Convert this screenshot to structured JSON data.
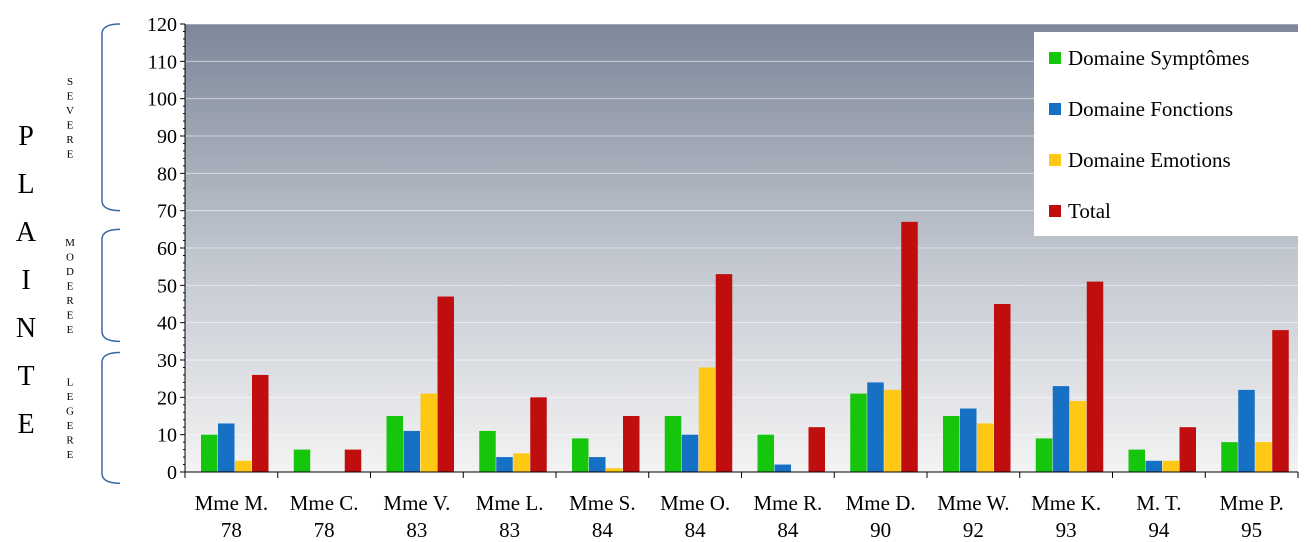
{
  "side_label": "PLAINTE",
  "severity_bands": [
    {
      "label": "SEVERE",
      "range": [
        70,
        120
      ]
    },
    {
      "label": "MODEREE",
      "range": [
        35,
        65
      ]
    },
    {
      "label": "LEGERE",
      "range": [
        -3,
        32
      ]
    }
  ],
  "chart_data": {
    "type": "bar",
    "title": "",
    "xlabel": "",
    "ylabel": "",
    "ylim": [
      0,
      120
    ],
    "yticks": [
      0,
      10,
      20,
      30,
      40,
      50,
      60,
      70,
      80,
      90,
      100,
      110,
      120
    ],
    "grid": true,
    "legend_position": "top-right",
    "categories": [
      [
        "Mme M.",
        "78"
      ],
      [
        "Mme C.",
        "78"
      ],
      [
        "Mme V.",
        "83"
      ],
      [
        "Mme L.",
        "83"
      ],
      [
        "Mme S.",
        "84"
      ],
      [
        "Mme O.",
        "84"
      ],
      [
        "Mme R.",
        "84"
      ],
      [
        "Mme D.",
        "90"
      ],
      [
        "Mme W.",
        "92"
      ],
      [
        "Mme K.",
        "93"
      ],
      [
        "M. T.",
        "94"
      ],
      [
        "Mme P.",
        "95"
      ]
    ],
    "series": [
      {
        "name": "Domaine Symptômes",
        "color": "#16c60c",
        "values": [
          10,
          6,
          15,
          11,
          9,
          15,
          10,
          21,
          15,
          9,
          6,
          8
        ]
      },
      {
        "name": "Domaine Fonctions",
        "color": "#1670c4",
        "values": [
          13,
          0,
          11,
          4,
          4,
          10,
          2,
          24,
          17,
          23,
          3,
          22
        ]
      },
      {
        "name": "Domaine Emotions",
        "color": "#ffc814",
        "values": [
          3,
          0,
          21,
          5,
          1,
          28,
          0,
          22,
          13,
          19,
          3,
          8
        ]
      },
      {
        "name": "Total",
        "color": "#c00d0d",
        "values": [
          26,
          6,
          47,
          20,
          15,
          53,
          12,
          67,
          45,
          51,
          12,
          38
        ]
      }
    ]
  }
}
